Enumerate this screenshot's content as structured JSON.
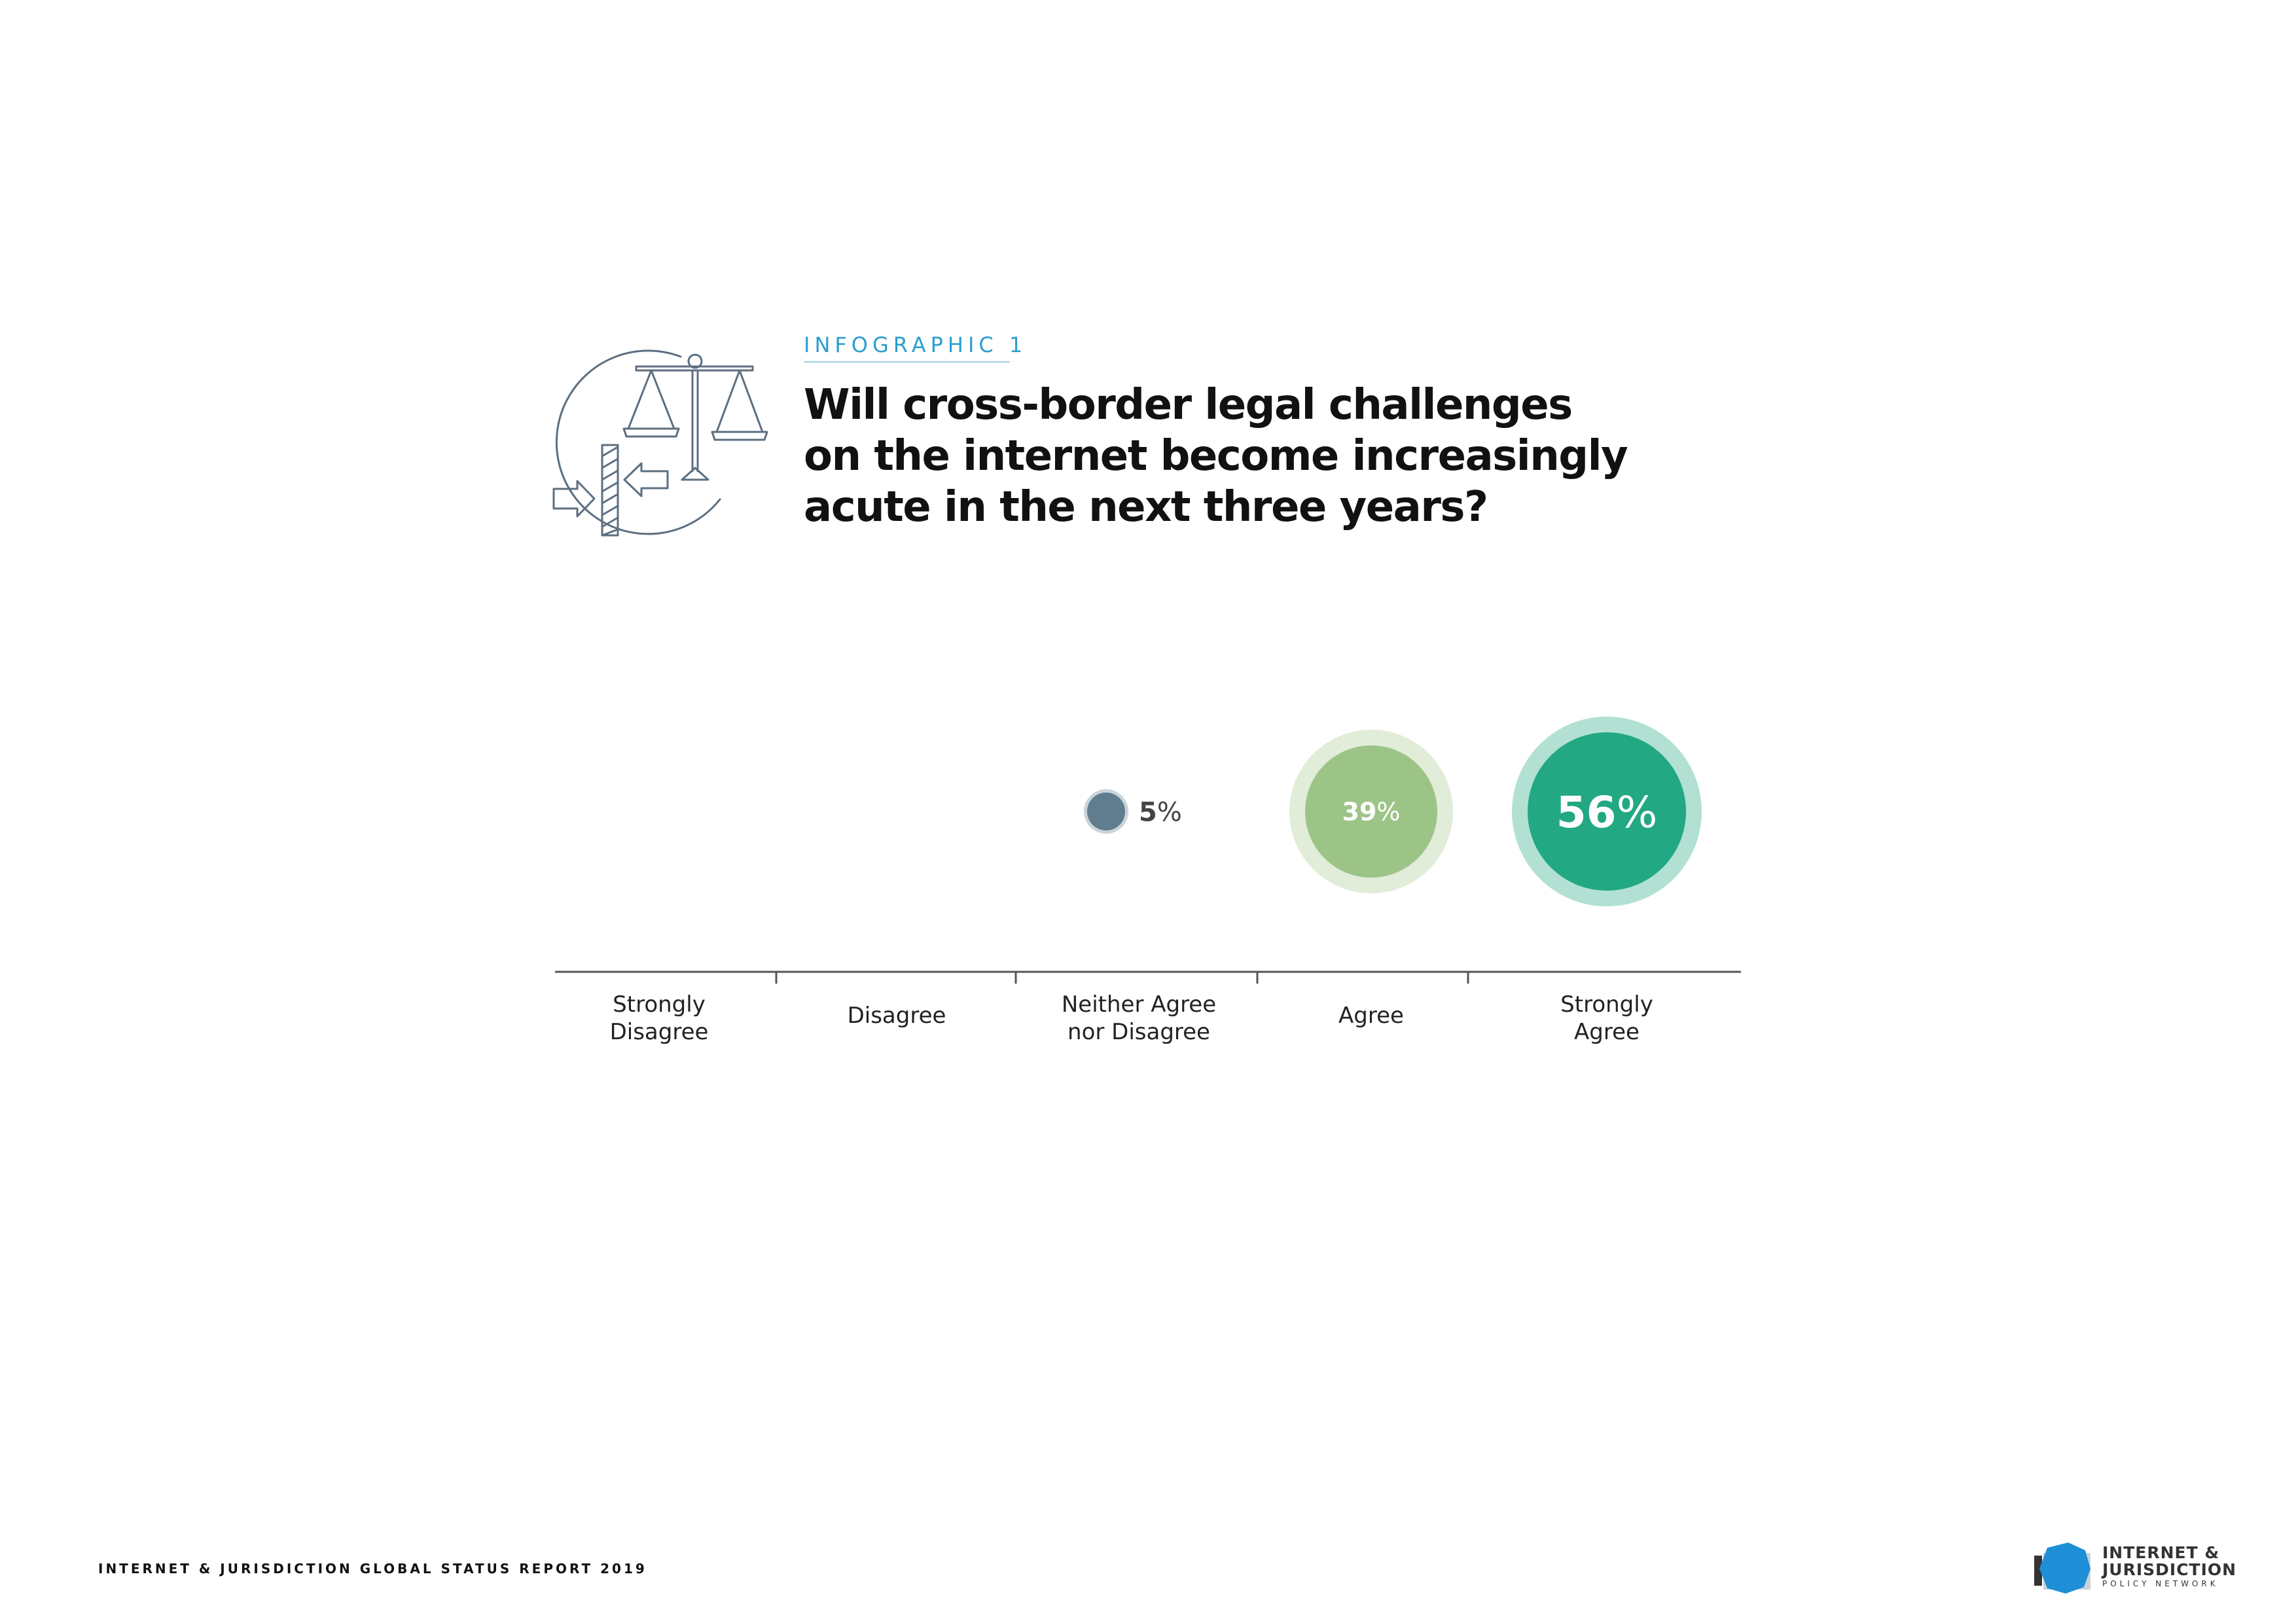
{
  "header": {
    "kicker": "INFOGRAPHIC 1",
    "title_lines": [
      "Will cross-border legal challenges",
      "on the internet become increasingly",
      "acute in the next three years?"
    ]
  },
  "chart_data": {
    "type": "bubble",
    "title": "Will cross-border legal challenges on the internet become increasingly acute in the next three years?",
    "categories": [
      "Strongly Disagree",
      "Disagree",
      "Neither Agree nor Disagree",
      "Agree",
      "Strongly Agree"
    ],
    "category_label_lines": [
      [
        "Strongly",
        "Disagree"
      ],
      [
        "Disagree"
      ],
      [
        "Neither Agree",
        "nor Disagree"
      ],
      [
        "Agree"
      ],
      [
        "Strongly",
        "Agree"
      ]
    ],
    "values": [
      null,
      null,
      5,
      39,
      56
    ],
    "value_labels": [
      "",
      "",
      "5%",
      "39%",
      "56%"
    ],
    "unit": "%",
    "colors": {
      "neither": "#5f7d8e",
      "agree": "#9cc487",
      "agree_halo": "#e1ecd9",
      "strongly": "#22a882",
      "strongly_halo": "#b2e1d3",
      "axis": "#555555",
      "label": "#222222"
    }
  },
  "footer": {
    "report": "INTERNET & JURISDICTION GLOBAL STATUS REPORT 2019"
  },
  "logo": {
    "line1": "INTERNET &",
    "line2": "JURISDICTION",
    "line3": "POLICY NETWORK",
    "icon": "octagon-logo-icon",
    "color": "#1e8fd6"
  }
}
